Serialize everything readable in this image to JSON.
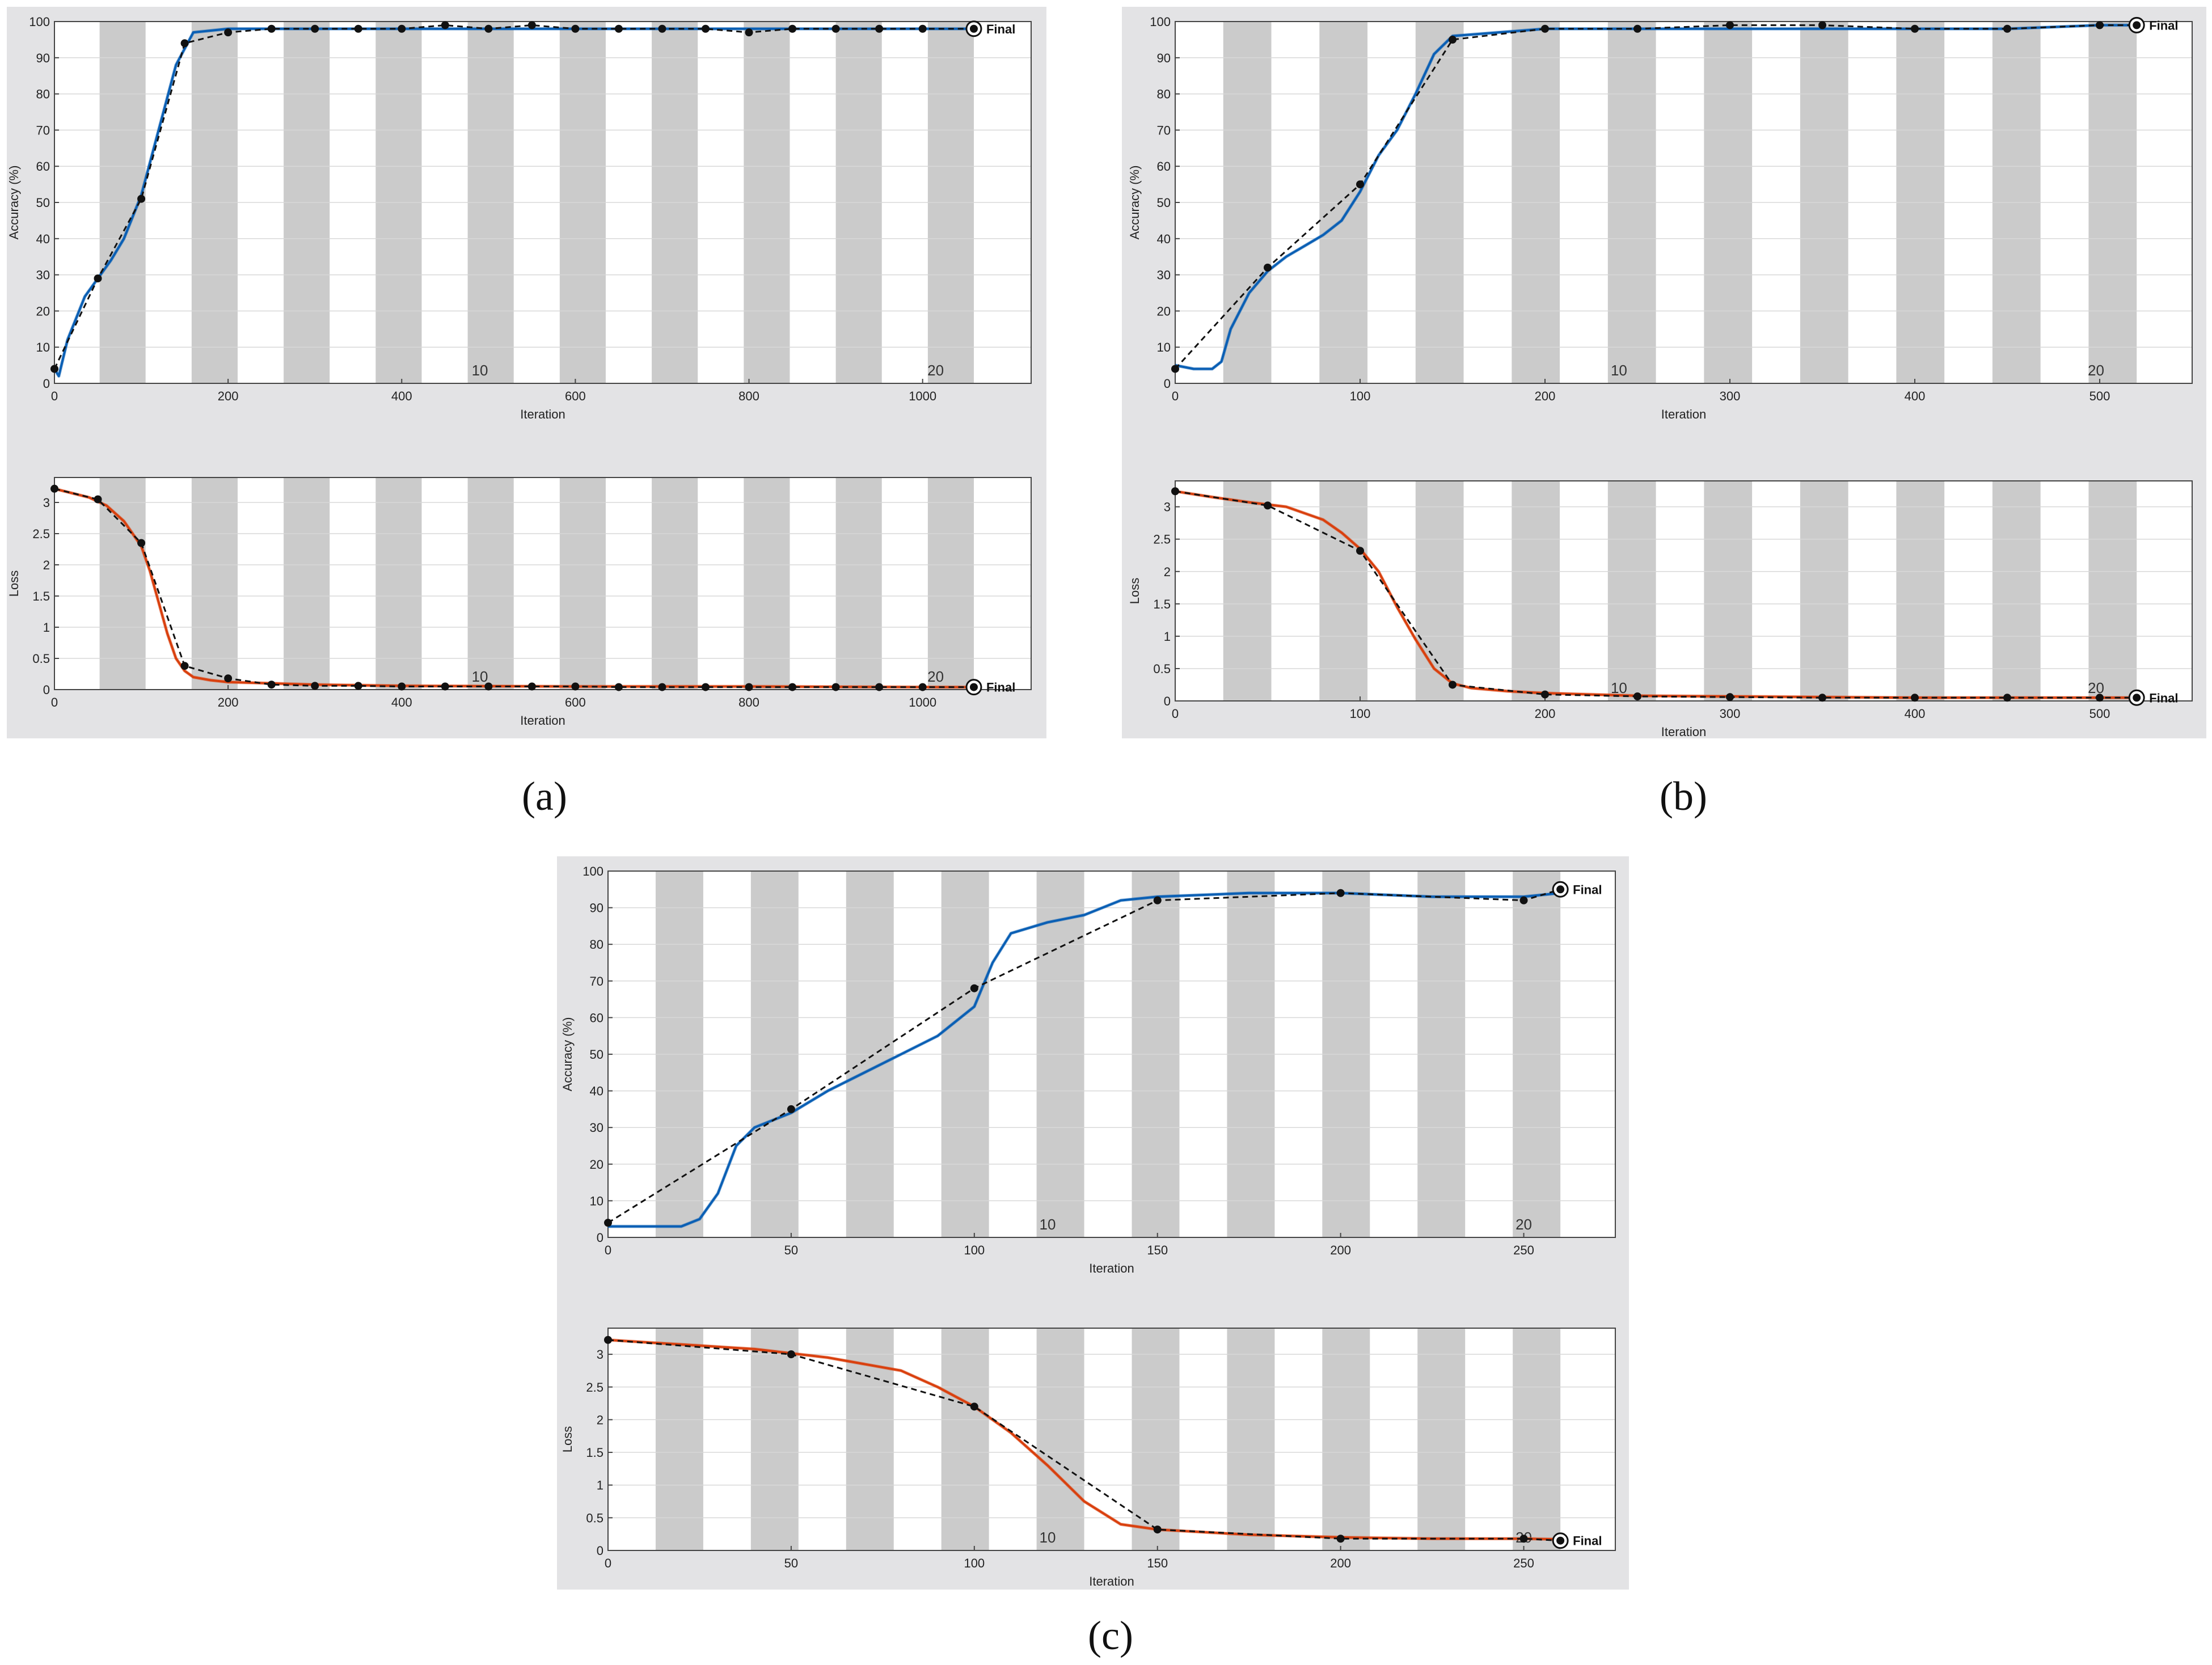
{
  "panels": [
    {
      "caption": "(a)",
      "epoch_labels": [
        {
          "epoch": "10",
          "x": 490
        },
        {
          "epoch": "20",
          "x": 1015
        }
      ],
      "stripe_bounds": [
        52,
        105,
        158,
        211,
        264,
        317,
        370,
        423,
        476,
        529,
        582,
        635,
        688,
        741,
        794,
        847,
        900,
        953,
        1006,
        1059
      ],
      "accuracy": {
        "type": "line",
        "ylabel": "Accuracy (%)",
        "xlabel": "Iteration",
        "xlim": [
          0,
          1125
        ],
        "ylim": [
          0,
          100
        ],
        "xticks": [
          0,
          200,
          400,
          600,
          800,
          1000
        ],
        "yticks": [
          0,
          10,
          20,
          30,
          40,
          50,
          60,
          70,
          80,
          90,
          100
        ],
        "grid": true,
        "end_label": "Final",
        "series": [
          {
            "color": "#0A5FB4",
            "style": "smoothed",
            "x": [
              0,
              5,
              15,
              25,
              35,
              50,
              65,
              80,
              100,
              120,
              140,
              160,
              200,
              300,
              400,
              500,
              600,
              700,
              800,
              900,
              1000,
              1059
            ],
            "y": [
              4,
              2,
              12,
              18,
              24,
              29,
              34,
              40,
              52,
              70,
              88,
              97,
              98,
              98,
              98,
              98,
              98,
              98,
              98,
              98,
              98,
              98
            ]
          },
          {
            "color": "#000000",
            "style": "validation",
            "x": [
              0,
              50,
              100,
              150,
              200,
              250,
              300,
              350,
              400,
              450,
              500,
              550,
              600,
              650,
              700,
              750,
              800,
              850,
              900,
              950,
              1000,
              1059
            ],
            "y": [
              4,
              29,
              51,
              94,
              97,
              98,
              98,
              98,
              98,
              99,
              98,
              99,
              98,
              98,
              98,
              98,
              97,
              98,
              98,
              98,
              98,
              98
            ]
          }
        ]
      },
      "loss": {
        "type": "line",
        "ylabel": "Loss",
        "xlabel": "Iteration",
        "xlim": [
          0,
          1125
        ],
        "ylim": [
          0,
          3.4
        ],
        "xticks": [
          0,
          200,
          400,
          600,
          800,
          1000
        ],
        "yticks": [
          0,
          0.5,
          1,
          1.5,
          2,
          2.5,
          3
        ],
        "grid": true,
        "end_label": "Final",
        "series": [
          {
            "color": "#D9400E",
            "style": "smoothed",
            "x": [
              0,
              20,
              40,
              60,
              80,
              100,
              110,
              120,
              130,
              140,
              150,
              160,
              180,
              200,
              300,
              400,
              600,
              800,
              1000,
              1059
            ],
            "y": [
              3.22,
              3.15,
              3.08,
              2.95,
              2.7,
              2.3,
              1.9,
              1.4,
              0.9,
              0.5,
              0.3,
              0.2,
              0.15,
              0.12,
              0.08,
              0.06,
              0.05,
              0.05,
              0.04,
              0.04
            ]
          },
          {
            "color": "#000000",
            "style": "validation",
            "x": [
              0,
              50,
              100,
              150,
              200,
              250,
              300,
              350,
              400,
              450,
              500,
              550,
              600,
              650,
              700,
              750,
              800,
              850,
              900,
              950,
              1000,
              1059
            ],
            "y": [
              3.22,
              3.05,
              2.35,
              0.38,
              0.18,
              0.08,
              0.06,
              0.06,
              0.05,
              0.05,
              0.05,
              0.05,
              0.05,
              0.04,
              0.04,
              0.04,
              0.04,
              0.04,
              0.04,
              0.04,
              0.04,
              0.04
            ]
          }
        ]
      }
    },
    {
      "caption": "(b)",
      "epoch_labels": [
        {
          "epoch": "10",
          "x": 240
        },
        {
          "epoch": "20",
          "x": 498
        }
      ],
      "stripe_bounds": [
        26,
        52,
        78,
        104,
        130,
        156,
        182,
        208,
        234,
        260,
        286,
        312,
        338,
        364,
        390,
        416,
        442,
        468,
        494,
        520
      ],
      "accuracy": {
        "type": "line",
        "ylabel": "Accuracy (%)",
        "xlabel": "Iteration",
        "xlim": [
          0,
          550
        ],
        "ylim": [
          0,
          100
        ],
        "xticks": [
          0,
          100,
          200,
          300,
          400,
          500
        ],
        "yticks": [
          0,
          10,
          20,
          30,
          40,
          50,
          60,
          70,
          80,
          90,
          100
        ],
        "grid": true,
        "end_label": "Final",
        "series": [
          {
            "color": "#0A5FB4",
            "style": "smoothed",
            "x": [
              0,
              10,
              20,
              25,
              30,
              40,
              50,
              60,
              70,
              80,
              90,
              100,
              110,
              120,
              130,
              140,
              150,
              175,
              200,
              250,
              300,
              350,
              400,
              450,
              500,
              520
            ],
            "y": [
              5,
              4,
              4,
              6,
              15,
              25,
              31,
              35,
              38,
              41,
              45,
              53,
              63,
              70,
              80,
              91,
              96,
              97,
              98,
              98,
              98,
              98,
              98,
              98,
              99,
              99
            ]
          },
          {
            "color": "#000000",
            "style": "validation",
            "x": [
              0,
              50,
              100,
              150,
              200,
              250,
              300,
              350,
              400,
              450,
              500,
              520
            ],
            "y": [
              4,
              32,
              55,
              95,
              98,
              98,
              99,
              99,
              98,
              98,
              99,
              99
            ]
          }
        ]
      },
      "loss": {
        "type": "line",
        "ylabel": "Loss",
        "xlabel": "Iteration",
        "xlim": [
          0,
          550
        ],
        "ylim": [
          0,
          3.4
        ],
        "xticks": [
          0,
          100,
          200,
          300,
          400,
          500
        ],
        "yticks": [
          0,
          0.5,
          1,
          1.5,
          2,
          2.5,
          3
        ],
        "grid": true,
        "end_label": "Final",
        "series": [
          {
            "color": "#D9400E",
            "style": "smoothed",
            "x": [
              0,
              20,
              40,
              60,
              80,
              90,
              100,
              110,
              120,
              130,
              140,
              150,
              160,
              180,
              200,
              250,
              300,
              350,
              400,
              450,
              500,
              520
            ],
            "y": [
              3.24,
              3.15,
              3.07,
              3.0,
              2.8,
              2.6,
              2.35,
              2.0,
              1.45,
              0.95,
              0.5,
              0.27,
              0.2,
              0.15,
              0.12,
              0.08,
              0.07,
              0.06,
              0.05,
              0.05,
              0.05,
              0.05
            ]
          },
          {
            "color": "#000000",
            "style": "validation",
            "x": [
              0,
              50,
              100,
              150,
              200,
              250,
              300,
              350,
              400,
              450,
              500,
              520
            ],
            "y": [
              3.24,
              3.02,
              2.32,
              0.25,
              0.1,
              0.07,
              0.06,
              0.05,
              0.05,
              0.05,
              0.05,
              0.05
            ]
          }
        ]
      }
    },
    {
      "caption": "(c)",
      "epoch_labels": [
        {
          "epoch": "10",
          "x": 120
        },
        {
          "epoch": "20",
          "x": 250
        }
      ],
      "stripe_bounds": [
        13,
        26,
        39,
        52,
        65,
        78,
        91,
        104,
        117,
        130,
        143,
        156,
        169,
        182,
        195,
        208,
        221,
        234,
        247,
        260
      ],
      "accuracy": {
        "type": "line",
        "ylabel": "Accuracy (%)",
        "xlabel": "Iteration",
        "xlim": [
          0,
          275
        ],
        "ylim": [
          0,
          100
        ],
        "xticks": [
          0,
          50,
          100,
          150,
          200,
          250
        ],
        "yticks": [
          0,
          10,
          20,
          30,
          40,
          50,
          60,
          70,
          80,
          90,
          100
        ],
        "grid": true,
        "end_label": "Final",
        "series": [
          {
            "color": "#0A5FB4",
            "style": "smoothed",
            "x": [
              0,
              10,
              20,
              25,
              30,
              35,
              40,
              50,
              60,
              70,
              80,
              90,
              100,
              105,
              110,
              120,
              130,
              140,
              150,
              175,
              200,
              225,
              250,
              260
            ],
            "y": [
              3,
              3,
              3,
              5,
              12,
              25,
              30,
              34,
              40,
              45,
              50,
              55,
              63,
              75,
              83,
              86,
              88,
              92,
              93,
              94,
              94,
              93,
              93,
              94
            ]
          },
          {
            "color": "#000000",
            "style": "validation",
            "x": [
              0,
              50,
              100,
              150,
              200,
              250,
              260
            ],
            "y": [
              4,
              35,
              68,
              92,
              94,
              92,
              95
            ]
          }
        ]
      },
      "loss": {
        "type": "line",
        "ylabel": "Loss",
        "xlabel": "Iteration",
        "xlim": [
          0,
          275
        ],
        "ylim": [
          0,
          3.4
        ],
        "xticks": [
          0,
          50,
          100,
          150,
          200,
          250
        ],
        "yticks": [
          0,
          0.5,
          1,
          1.5,
          2,
          2.5,
          3
        ],
        "grid": true,
        "end_label": "Final",
        "series": [
          {
            "color": "#D9400E",
            "style": "smoothed",
            "x": [
              0,
              20,
              40,
              60,
              80,
              90,
              100,
              110,
              120,
              130,
              140,
              150,
              175,
              200,
              225,
              250,
              260
            ],
            "y": [
              3.22,
              3.15,
              3.08,
              2.95,
              2.75,
              2.5,
              2.2,
              1.8,
              1.3,
              0.75,
              0.4,
              0.32,
              0.24,
              0.2,
              0.18,
              0.18,
              0.17
            ]
          },
          {
            "color": "#000000",
            "style": "validation",
            "x": [
              0,
              50,
              100,
              150,
              200,
              250,
              260
            ],
            "y": [
              3.22,
              3.0,
              2.2,
              0.32,
              0.18,
              0.18,
              0.15
            ]
          }
        ]
      }
    }
  ],
  "chart_data": [
    {
      "type": "line",
      "panel": "(a)",
      "xlabel": "Iteration",
      "ylabel": "Accuracy (%)",
      "xlim": [
        0,
        1125
      ],
      "ylim": [
        0,
        100
      ],
      "grid": true,
      "series": [
        {
          "name": "",
          "x": [
            0,
            50,
            100,
            150,
            200,
            300,
            400,
            500,
            600,
            700,
            800,
            900,
            1000,
            1059
          ],
          "values": [
            4,
            29,
            51,
            94,
            97,
            98,
            98,
            98,
            98,
            98,
            97,
            98,
            98,
            98
          ]
        }
      ]
    },
    {
      "type": "line",
      "panel": "(a)",
      "xlabel": "Iteration",
      "ylabel": "Loss",
      "xlim": [
        0,
        1125
      ],
      "ylim": [
        0,
        3.4
      ],
      "grid": true,
      "series": [
        {
          "name": "",
          "x": [
            0,
            50,
            100,
            150,
            200,
            300,
            400,
            500,
            600,
            700,
            800,
            900,
            1000,
            1059
          ],
          "values": [
            3.22,
            3.05,
            2.35,
            0.38,
            0.18,
            0.06,
            0.05,
            0.05,
            0.05,
            0.04,
            0.04,
            0.04,
            0.04,
            0.04
          ]
        }
      ]
    },
    {
      "type": "line",
      "panel": "(b)",
      "xlabel": "Iteration",
      "ylabel": "Accuracy (%)",
      "xlim": [
        0,
        550
      ],
      "ylim": [
        0,
        100
      ],
      "grid": true,
      "series": [
        {
          "name": "",
          "x": [
            0,
            50,
            100,
            150,
            200,
            250,
            300,
            350,
            400,
            450,
            500,
            520
          ],
          "values": [
            4,
            32,
            55,
            95,
            98,
            98,
            99,
            99,
            98,
            98,
            99,
            99
          ]
        }
      ]
    },
    {
      "type": "line",
      "panel": "(b)",
      "xlabel": "Iteration",
      "ylabel": "Loss",
      "xlim": [
        0,
        550
      ],
      "ylim": [
        0,
        3.4
      ],
      "grid": true,
      "series": [
        {
          "name": "",
          "x": [
            0,
            50,
            100,
            150,
            200,
            250,
            300,
            350,
            400,
            450,
            500,
            520
          ],
          "values": [
            3.24,
            3.02,
            2.32,
            0.25,
            0.1,
            0.07,
            0.06,
            0.05,
            0.05,
            0.05,
            0.05,
            0.05
          ]
        }
      ]
    },
    {
      "type": "line",
      "panel": "(c)",
      "xlabel": "Iteration",
      "ylabel": "Accuracy (%)",
      "xlim": [
        0,
        275
      ],
      "ylim": [
        0,
        100
      ],
      "grid": true,
      "series": [
        {
          "name": "",
          "x": [
            0,
            50,
            100,
            150,
            200,
            250,
            260
          ],
          "values": [
            4,
            35,
            68,
            92,
            94,
            92,
            95
          ]
        }
      ]
    },
    {
      "type": "line",
      "panel": "(c)",
      "xlabel": "Iteration",
      "ylabel": "Loss",
      "xlim": [
        0,
        275
      ],
      "ylim": [
        0,
        3.4
      ],
      "grid": true,
      "series": [
        {
          "name": "",
          "x": [
            0,
            50,
            100,
            150,
            200,
            250,
            260
          ],
          "values": [
            3.22,
            3.0,
            2.2,
            0.32,
            0.18,
            0.18,
            0.15
          ]
        }
      ]
    }
  ]
}
